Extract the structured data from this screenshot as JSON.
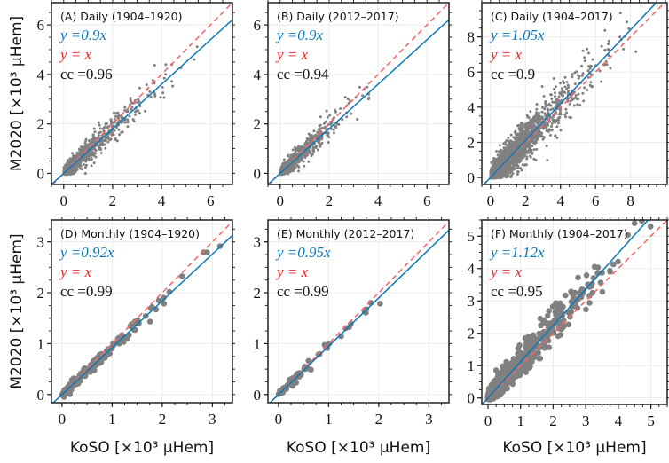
{
  "colors": {
    "points": "#808080",
    "fit": "#0a78b8",
    "identity": "#f26b6b",
    "grid": "#ececec",
    "frame": "#222222",
    "identity_text": "#e8262a"
  },
  "axis_labels": {
    "y": "M2020 [×10³ μHem]",
    "x": "KoSO [×10³ μHem]"
  },
  "chart_data": [
    {
      "type": "scatter",
      "title": "(A) Daily (1904–1920)",
      "fit_label": "y =0.9x",
      "identity_label": "y = x",
      "cc_label": "cc =0.96",
      "fit_slope": 0.9,
      "cc": 0.96,
      "xlim": [
        -0.5,
        6.9
      ],
      "ylim": [
        -0.45,
        6.9
      ],
      "xticks": [
        0,
        2,
        4,
        6
      ],
      "yticks": [
        0,
        2,
        4,
        6
      ],
      "xlabel": "",
      "ylabel": "M2020 [×10³ μHem]",
      "points": {
        "n": 900,
        "x_mean": 0.9,
        "x_max": 6.3,
        "spread": 0.22,
        "seed": 11,
        "size": "small"
      }
    },
    {
      "type": "scatter",
      "title": "(B) Daily (2012–2017)",
      "fit_label": "y =0.9x",
      "identity_label": "y = x",
      "cc_label": "cc =0.94",
      "fit_slope": 0.9,
      "cc": 0.94,
      "xlim": [
        -0.5,
        6.9
      ],
      "ylim": [
        -0.45,
        6.9
      ],
      "xticks": [
        0,
        2,
        4,
        6
      ],
      "yticks": [
        0,
        2,
        4,
        6
      ],
      "xlabel": "",
      "ylabel": "",
      "points": {
        "n": 700,
        "x_mean": 0.7,
        "x_max": 4.6,
        "spread": 0.2,
        "seed": 23,
        "size": "small"
      }
    },
    {
      "type": "scatter",
      "title": "(C) Daily (1904–2017)",
      "fit_label": "y =1.05x",
      "identity_label": "y = x",
      "cc_label": "cc =0.9",
      "fit_slope": 1.05,
      "cc": 0.9,
      "xlim": [
        -0.5,
        10.1
      ],
      "ylim": [
        -0.4,
        9.95
      ],
      "xticks": [
        0,
        2,
        4,
        6,
        8
      ],
      "yticks": [
        0,
        2,
        4,
        6,
        8
      ],
      "xlabel": "",
      "ylabel": "",
      "points": {
        "n": 2200,
        "x_mean": 1.4,
        "x_max": 8.4,
        "spread": 0.45,
        "seed": 37,
        "size": "small"
      }
    },
    {
      "type": "scatter",
      "title": "(D) Monthly (1904–1920)",
      "fit_label": "y =0.92x",
      "identity_label": "y = x",
      "cc_label": "cc =0.99",
      "fit_slope": 0.92,
      "cc": 0.99,
      "xlim": [
        -0.21,
        3.4
      ],
      "ylim": [
        -0.16,
        3.43
      ],
      "xticks": [
        0,
        1,
        2,
        3
      ],
      "yticks": [
        0,
        1,
        2,
        3
      ],
      "xlabel": "KoSO [×10³ μHem]",
      "ylabel": "M2020 [×10³ μHem]",
      "points": {
        "n": 200,
        "x_mean": 0.6,
        "x_max": 3.2,
        "spread": 0.06,
        "seed": 41,
        "size": "large"
      }
    },
    {
      "type": "scatter",
      "title": "(E) Monthly (2012–2017)",
      "fit_label": "y =0.95x",
      "identity_label": "y = x",
      "cc_label": "cc =0.99",
      "fit_slope": 0.95,
      "cc": 0.99,
      "xlim": [
        -0.21,
        3.4
      ],
      "ylim": [
        -0.16,
        3.43
      ],
      "xticks": [
        0,
        1,
        2,
        3
      ],
      "yticks": [
        0,
        1,
        2,
        3
      ],
      "xlabel": "KoSO [×10³ μHem]",
      "ylabel": "",
      "points": {
        "n": 70,
        "x_mean": 0.6,
        "x_max": 2.6,
        "spread": 0.05,
        "seed": 53,
        "size": "large"
      }
    },
    {
      "type": "scatter",
      "title": "(F) Monthly (1904–2017)",
      "fit_label": "y =1.12x",
      "identity_label": "y = x",
      "cc_label": "cc =0.95",
      "fit_slope": 1.12,
      "cc": 0.95,
      "xlim": [
        -0.19,
        5.5
      ],
      "ylim": [
        -0.2,
        5.5
      ],
      "xticks": [
        0,
        1,
        2,
        3,
        4,
        5
      ],
      "yticks": [
        0,
        1,
        2,
        3,
        4,
        5
      ],
      "xlabel": "KoSO [×10³ μHem]",
      "ylabel": "",
      "points": {
        "n": 900,
        "x_mean": 0.8,
        "x_max": 5.0,
        "spread": 0.2,
        "seed": 67,
        "size": "large"
      }
    }
  ]
}
